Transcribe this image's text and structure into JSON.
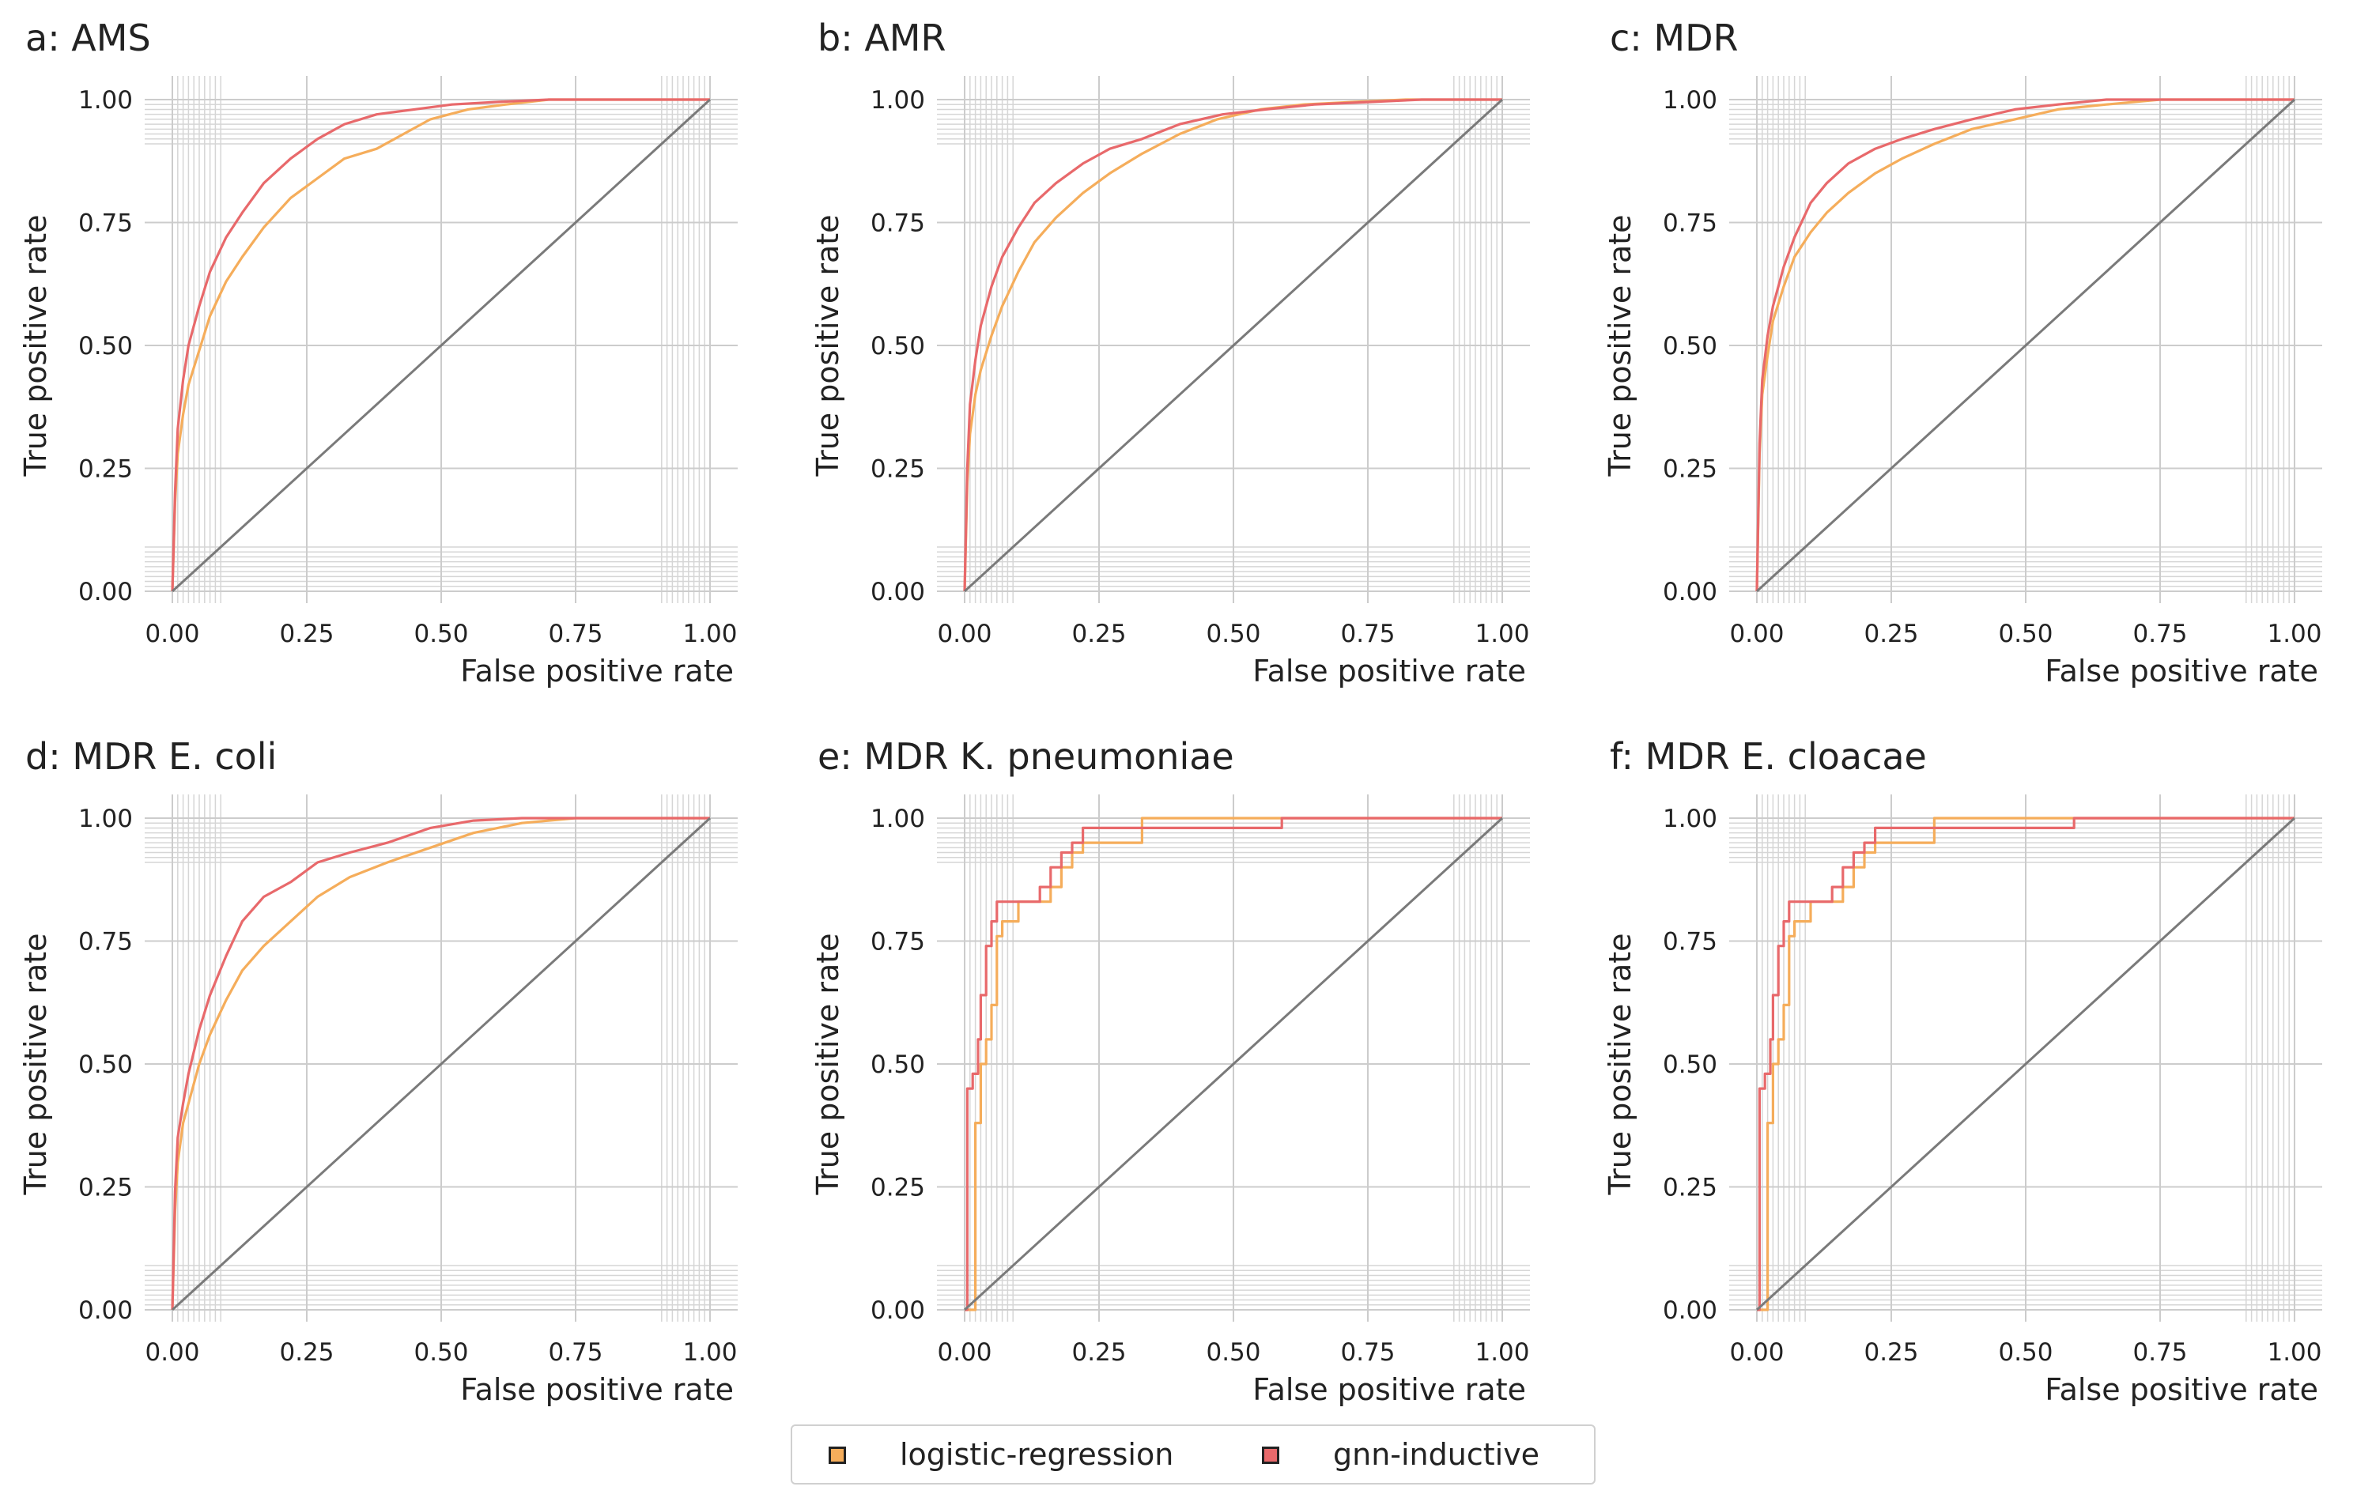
{
  "figure": {
    "legend": [
      {
        "label": "logistic-regression",
        "color": "#f5ad5b"
      },
      {
        "label": "gnn-inductive",
        "color": "#e8696b"
      }
    ],
    "colors": {
      "diagonal": "#7a7a7a",
      "grid": "#cccccc",
      "minor_grid": "#d6d6d6",
      "text": "#222222"
    }
  },
  "chart_data": [
    {
      "type": "line",
      "title": "a: AMS",
      "xlabel": "False positive rate",
      "ylabel": "True positive rate",
      "xlim": [
        0,
        1
      ],
      "ylim": [
        0,
        1
      ],
      "xticks": [
        "0.00",
        "0.25",
        "0.50",
        "0.75",
        "1.00"
      ],
      "yticks": [
        "0.00",
        "0.25",
        "0.50",
        "0.75",
        "1.00"
      ],
      "grid": true,
      "legend": "bottom-center",
      "series": [
        {
          "name": "logistic-regression",
          "color": "#f5ad5b",
          "x": [
            0,
            0.005,
            0.01,
            0.02,
            0.03,
            0.05,
            0.07,
            0.1,
            0.13,
            0.17,
            0.22,
            0.27,
            0.32,
            0.38,
            0.43,
            0.48,
            0.55,
            0.62,
            0.7,
            0.8,
            0.9,
            1.0
          ],
          "y": [
            0,
            0.18,
            0.28,
            0.36,
            0.42,
            0.49,
            0.56,
            0.63,
            0.68,
            0.74,
            0.8,
            0.84,
            0.88,
            0.9,
            0.93,
            0.96,
            0.98,
            0.99,
            1.0,
            1.0,
            1.0,
            1.0
          ]
        },
        {
          "name": "gnn-inductive",
          "color": "#e8696b",
          "x": [
            0,
            0.005,
            0.01,
            0.02,
            0.03,
            0.05,
            0.07,
            0.1,
            0.13,
            0.17,
            0.22,
            0.27,
            0.32,
            0.38,
            0.45,
            0.52,
            0.6,
            0.7,
            0.8,
            0.9,
            1.0
          ],
          "y": [
            0,
            0.2,
            0.33,
            0.43,
            0.5,
            0.58,
            0.65,
            0.72,
            0.77,
            0.83,
            0.88,
            0.92,
            0.95,
            0.97,
            0.98,
            0.99,
            0.995,
            1.0,
            1.0,
            1.0,
            1.0
          ]
        },
        {
          "name": "",
          "color": "#7a7a7a",
          "x": [
            0,
            1
          ],
          "y": [
            0,
            1
          ]
        }
      ]
    },
    {
      "type": "line",
      "title": "b: AMR",
      "xlabel": "False positive rate",
      "ylabel": "True positive rate",
      "xlim": [
        0,
        1
      ],
      "ylim": [
        0,
        1
      ],
      "xticks": [
        "0.00",
        "0.25",
        "0.50",
        "0.75",
        "1.00"
      ],
      "yticks": [
        "0.00",
        "0.25",
        "0.50",
        "0.75",
        "1.00"
      ],
      "grid": true,
      "legend": "bottom-center",
      "series": [
        {
          "name": "logistic-regression",
          "color": "#f5ad5b",
          "x": [
            0,
            0.005,
            0.01,
            0.02,
            0.03,
            0.05,
            0.07,
            0.1,
            0.13,
            0.17,
            0.22,
            0.27,
            0.33,
            0.4,
            0.47,
            0.55,
            0.63,
            0.72,
            0.82,
            0.92,
            1.0
          ],
          "y": [
            0,
            0.22,
            0.32,
            0.4,
            0.45,
            0.52,
            0.58,
            0.65,
            0.71,
            0.76,
            0.81,
            0.85,
            0.89,
            0.93,
            0.96,
            0.98,
            0.99,
            0.995,
            1.0,
            1.0,
            1.0
          ]
        },
        {
          "name": "gnn-inductive",
          "color": "#e8696b",
          "x": [
            0,
            0.005,
            0.01,
            0.02,
            0.03,
            0.05,
            0.07,
            0.1,
            0.13,
            0.17,
            0.22,
            0.27,
            0.33,
            0.4,
            0.48,
            0.56,
            0.65,
            0.75,
            0.85,
            0.95,
            1.0
          ],
          "y": [
            0,
            0.25,
            0.38,
            0.47,
            0.54,
            0.62,
            0.68,
            0.74,
            0.79,
            0.83,
            0.87,
            0.9,
            0.92,
            0.95,
            0.97,
            0.98,
            0.99,
            0.995,
            1.0,
            1.0,
            1.0
          ]
        },
        {
          "name": "",
          "color": "#7a7a7a",
          "x": [
            0,
            1
          ],
          "y": [
            0,
            1
          ]
        }
      ]
    },
    {
      "type": "line",
      "title": "c: MDR",
      "xlabel": "False positive rate",
      "ylabel": "True positive rate",
      "xlim": [
        0,
        1
      ],
      "ylim": [
        0,
        1
      ],
      "xticks": [
        "0.00",
        "0.25",
        "0.50",
        "0.75",
        "1.00"
      ],
      "yticks": [
        "0.00",
        "0.25",
        "0.50",
        "0.75",
        "1.00"
      ],
      "grid": true,
      "legend": "bottom-center",
      "series": [
        {
          "name": "logistic-regression",
          "color": "#f5ad5b",
          "x": [
            0,
            0.005,
            0.01,
            0.02,
            0.03,
            0.05,
            0.07,
            0.1,
            0.13,
            0.17,
            0.22,
            0.27,
            0.33,
            0.4,
            0.48,
            0.56,
            0.65,
            0.75,
            0.85,
            1.0
          ],
          "y": [
            0,
            0.28,
            0.4,
            0.48,
            0.55,
            0.62,
            0.68,
            0.73,
            0.77,
            0.81,
            0.85,
            0.88,
            0.91,
            0.94,
            0.96,
            0.98,
            0.99,
            1.0,
            1.0,
            1.0
          ]
        },
        {
          "name": "gnn-inductive",
          "color": "#e8696b",
          "x": [
            0,
            0.005,
            0.01,
            0.02,
            0.03,
            0.05,
            0.07,
            0.1,
            0.13,
            0.17,
            0.22,
            0.27,
            0.33,
            0.4,
            0.48,
            0.56,
            0.65,
            0.75,
            0.85,
            1.0
          ],
          "y": [
            0,
            0.3,
            0.43,
            0.52,
            0.58,
            0.66,
            0.72,
            0.79,
            0.83,
            0.87,
            0.9,
            0.92,
            0.94,
            0.96,
            0.98,
            0.99,
            1.0,
            1.0,
            1.0,
            1.0
          ]
        },
        {
          "name": "",
          "color": "#7a7a7a",
          "x": [
            0,
            1
          ],
          "y": [
            0,
            1
          ]
        }
      ]
    },
    {
      "type": "line",
      "title": "d: MDR E. coli",
      "xlabel": "False positive rate",
      "ylabel": "True positive rate",
      "xlim": [
        0,
        1
      ],
      "ylim": [
        0,
        1
      ],
      "xticks": [
        "0.00",
        "0.25",
        "0.50",
        "0.75",
        "1.00"
      ],
      "yticks": [
        "0.00",
        "0.25",
        "0.50",
        "0.75",
        "1.00"
      ],
      "grid": true,
      "legend": "bottom-center",
      "series": [
        {
          "name": "logistic-regression",
          "color": "#f5ad5b",
          "x": [
            0,
            0.005,
            0.01,
            0.02,
            0.03,
            0.05,
            0.07,
            0.1,
            0.13,
            0.17,
            0.22,
            0.27,
            0.33,
            0.4,
            0.48,
            0.56,
            0.65,
            0.75,
            0.85,
            1.0
          ],
          "y": [
            0,
            0.2,
            0.3,
            0.38,
            0.42,
            0.5,
            0.56,
            0.63,
            0.69,
            0.74,
            0.79,
            0.84,
            0.88,
            0.91,
            0.94,
            0.97,
            0.99,
            1.0,
            1.0,
            1.0
          ]
        },
        {
          "name": "gnn-inductive",
          "color": "#e8696b",
          "x": [
            0,
            0.005,
            0.01,
            0.02,
            0.03,
            0.05,
            0.07,
            0.1,
            0.13,
            0.17,
            0.22,
            0.27,
            0.33,
            0.4,
            0.48,
            0.56,
            0.65,
            0.75,
            0.85,
            1.0
          ],
          "y": [
            0,
            0.24,
            0.35,
            0.42,
            0.48,
            0.57,
            0.64,
            0.72,
            0.79,
            0.84,
            0.87,
            0.91,
            0.93,
            0.95,
            0.98,
            0.995,
            1.0,
            1.0,
            1.0,
            1.0
          ]
        },
        {
          "name": "",
          "color": "#7a7a7a",
          "x": [
            0,
            1
          ],
          "y": [
            0,
            1
          ]
        }
      ]
    },
    {
      "type": "line",
      "title": "e: MDR K. pneumoniae",
      "xlabel": "False positive rate",
      "ylabel": "True positive rate",
      "xlim": [
        0,
        1
      ],
      "ylim": [
        0,
        1
      ],
      "xticks": [
        "0.00",
        "0.25",
        "0.50",
        "0.75",
        "1.00"
      ],
      "yticks": [
        "0.00",
        "0.25",
        "0.50",
        "0.75",
        "1.00"
      ],
      "grid": true,
      "legend": "bottom-center",
      "series": [
        {
          "name": "logistic-regression",
          "color": "#f5ad5b",
          "step": true,
          "x": [
            0,
            0.02,
            0.02,
            0.03,
            0.03,
            0.04,
            0.04,
            0.05,
            0.05,
            0.06,
            0.06,
            0.07,
            0.07,
            0.1,
            0.1,
            0.16,
            0.16,
            0.18,
            0.18,
            0.2,
            0.2,
            0.22,
            0.22,
            0.33,
            0.33,
            1.0
          ],
          "y": [
            0,
            0,
            0.38,
            0.38,
            0.5,
            0.5,
            0.55,
            0.55,
            0.62,
            0.62,
            0.76,
            0.76,
            0.79,
            0.79,
            0.83,
            0.83,
            0.86,
            0.86,
            0.9,
            0.9,
            0.93,
            0.93,
            0.95,
            0.95,
            1.0,
            1.0
          ]
        },
        {
          "name": "gnn-inductive",
          "color": "#e8696b",
          "step": true,
          "x": [
            0,
            0.005,
            0.005,
            0.015,
            0.015,
            0.025,
            0.025,
            0.03,
            0.03,
            0.04,
            0.04,
            0.05,
            0.05,
            0.06,
            0.06,
            0.14,
            0.14,
            0.16,
            0.16,
            0.18,
            0.18,
            0.2,
            0.2,
            0.22,
            0.22,
            0.59,
            0.59,
            1.0
          ],
          "y": [
            0,
            0,
            0.45,
            0.45,
            0.48,
            0.48,
            0.55,
            0.55,
            0.64,
            0.64,
            0.74,
            0.74,
            0.79,
            0.79,
            0.83,
            0.83,
            0.86,
            0.86,
            0.9,
            0.9,
            0.93,
            0.93,
            0.95,
            0.95,
            0.98,
            0.98,
            1.0,
            1.0
          ]
        },
        {
          "name": "",
          "color": "#7a7a7a",
          "x": [
            0,
            1
          ],
          "y": [
            0,
            1
          ]
        }
      ]
    },
    {
      "type": "line",
      "title": "f: MDR E. cloacae",
      "xlabel": "False positive rate",
      "ylabel": "True positive rate",
      "xlim": [
        0,
        1
      ],
      "ylim": [
        0,
        1
      ],
      "xticks": [
        "0.00",
        "0.25",
        "0.50",
        "0.75",
        "1.00"
      ],
      "yticks": [
        "0.00",
        "0.25",
        "0.50",
        "0.75",
        "1.00"
      ],
      "grid": true,
      "legend": "bottom-center",
      "series": [
        {
          "name": "logistic-regression",
          "color": "#f5ad5b",
          "step": true,
          "x": [
            0,
            0.02,
            0.02,
            0.03,
            0.03,
            0.04,
            0.04,
            0.05,
            0.05,
            0.06,
            0.06,
            0.07,
            0.07,
            0.1,
            0.1,
            0.16,
            0.16,
            0.18,
            0.18,
            0.2,
            0.2,
            0.22,
            0.22,
            0.33,
            0.33,
            1.0
          ],
          "y": [
            0,
            0,
            0.38,
            0.38,
            0.5,
            0.5,
            0.55,
            0.55,
            0.62,
            0.62,
            0.76,
            0.76,
            0.79,
            0.79,
            0.83,
            0.83,
            0.86,
            0.86,
            0.9,
            0.9,
            0.93,
            0.93,
            0.95,
            0.95,
            1.0,
            1.0
          ]
        },
        {
          "name": "gnn-inductive",
          "color": "#e8696b",
          "step": true,
          "x": [
            0,
            0.005,
            0.005,
            0.015,
            0.015,
            0.025,
            0.025,
            0.03,
            0.03,
            0.04,
            0.04,
            0.05,
            0.05,
            0.06,
            0.06,
            0.14,
            0.14,
            0.16,
            0.16,
            0.18,
            0.18,
            0.2,
            0.2,
            0.22,
            0.22,
            0.59,
            0.59,
            1.0
          ],
          "y": [
            0,
            0,
            0.45,
            0.45,
            0.48,
            0.48,
            0.55,
            0.55,
            0.64,
            0.64,
            0.74,
            0.74,
            0.79,
            0.79,
            0.83,
            0.83,
            0.86,
            0.86,
            0.9,
            0.9,
            0.93,
            0.93,
            0.95,
            0.95,
            0.98,
            0.98,
            1.0,
            1.0
          ]
        },
        {
          "name": "",
          "color": "#7a7a7a",
          "x": [
            0,
            1
          ],
          "y": [
            0,
            1
          ]
        }
      ]
    }
  ]
}
